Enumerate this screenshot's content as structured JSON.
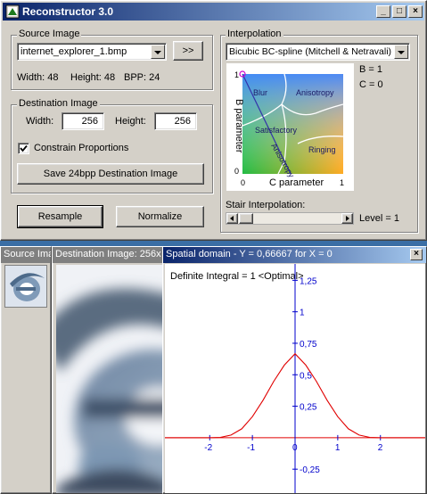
{
  "window": {
    "title": "Reconstructor 3.0",
    "buttons": [
      "_",
      "□",
      "×"
    ]
  },
  "source": {
    "group_label": "Source Image",
    "file": "internet_explorer_1.bmp",
    "next_button": ">>",
    "width_text": "Width: 48",
    "height_text": "Height: 48",
    "bpp_text": "BPP: 24"
  },
  "destination": {
    "group_label": "Destination Image",
    "width_label": "Width:",
    "width_value": "256",
    "height_label": "Height:",
    "height_value": "256",
    "constrain_label": "Constrain Proportions",
    "constrain_checked": true,
    "save_button": "Save 24bpp Destination Image"
  },
  "actions": {
    "resample": "Resample",
    "normalize": "Normalize"
  },
  "interpolation": {
    "group_label": "Interpolation",
    "method": "Bicubic BC-spline (Mitchell & Netravali)",
    "b_value": "B = 1",
    "c_value": "C = 0",
    "plot": {
      "ylabel": "B parameter",
      "xlabel": "C parameter",
      "regions": [
        "Blur",
        "Anisotropy",
        "Satisfactory",
        "Ringing",
        "Anisotropy"
      ],
      "ticks": [
        "1",
        "0",
        "0",
        "1"
      ],
      "point": {
        "b": 1,
        "c": 0
      }
    },
    "stair_label": "Stair Interpolation:",
    "level_text": "Level = 1",
    "level_value": 1
  },
  "panels": {
    "source_title": "Source Ima",
    "dest_title": "Destination Image: 256x",
    "spatial_title": "Spatial domain - Y = 0,66667 for X = 0",
    "spatial_close": "×",
    "integral_text": "Definite Integral = 1  <Optimal>"
  },
  "chart_data": {
    "type": "line",
    "title": "Spatial domain - Y = 0,66667 for X = 0",
    "x_ticks": [
      "-2",
      "-1",
      "0",
      "1",
      "2"
    ],
    "y_ticks": [
      "1,25",
      "1",
      "0,75",
      "0,5",
      "0,25",
      "-0,25"
    ],
    "xlim": [
      -3.05,
      3.05
    ],
    "ylim": [
      -0.44,
      1.38
    ],
    "series": [
      {
        "x": [
          -2,
          -1.75,
          -1.5,
          -1.25,
          -1,
          -0.75,
          -0.5,
          -0.25,
          0,
          0.25,
          0.5,
          0.75,
          1,
          1.25,
          1.5,
          1.75,
          2
        ],
        "y": [
          0,
          0.0026,
          0.0208,
          0.0703,
          0.1667,
          0.2982,
          0.4479,
          0.5768,
          0.6667,
          0.5768,
          0.4479,
          0.2982,
          0.1667,
          0.0703,
          0.0208,
          0.0026,
          0
        ]
      }
    ],
    "colors": {
      "curve": "#e00000",
      "axes": "#0000cc"
    }
  }
}
